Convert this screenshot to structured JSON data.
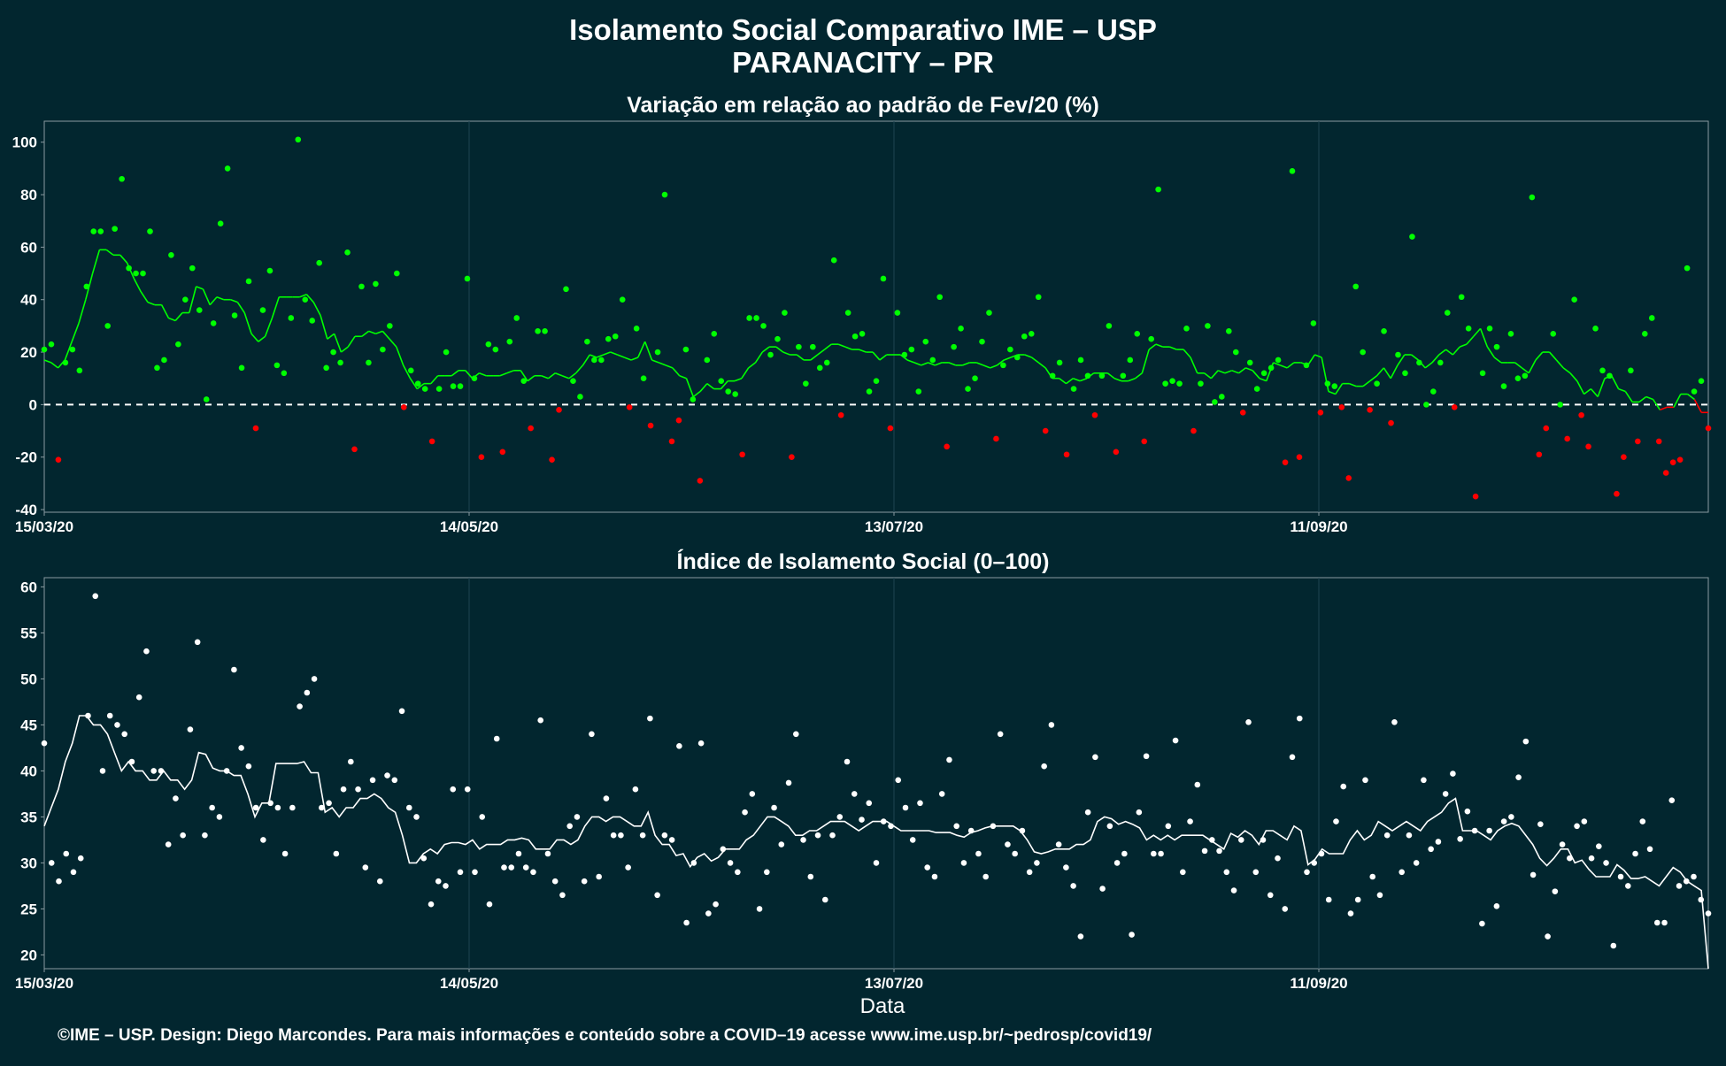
{
  "title": "Isolamento Social Comparativo IME – USP",
  "subtitle": "PARANACITY – PR",
  "xlabel": "Data",
  "footer": "©IME – USP. Design: Diego Marcondes. Para mais informações e conteúdo sobre a COVID–19 acesse www.ime.usp.br/~pedrosp/covid19/",
  "colors": {
    "background": "#02262f",
    "above": "#00ff00",
    "below": "#ff0000",
    "index": "#ffffff",
    "text": "#ffffff"
  },
  "chart_data": [
    {
      "type": "scatter",
      "title": "Variação em relação ao padrão de Fev/20 (%)",
      "xlabel": "Data",
      "ylabel": "",
      "x_range": [
        "2020-03-15",
        "2020-11-05"
      ],
      "ylim": [
        -41,
        108
      ],
      "yticks": [
        -40,
        -20,
        0,
        20,
        40,
        60,
        80,
        100
      ],
      "xticks": [
        "15/03/20",
        "14/05/20",
        "13/07/20",
        "11/09/20"
      ],
      "reference_line": 0,
      "grid": true,
      "series": [
        {
          "values": [
            21,
            23,
            -21,
            16,
            21,
            13,
            45,
            66,
            66,
            30,
            67,
            86,
            52,
            50,
            50,
            66,
            14,
            17,
            57,
            23,
            40,
            52,
            36,
            2,
            31,
            69,
            90,
            34,
            14,
            47,
            -9,
            36,
            51,
            15,
            12,
            33,
            101,
            40,
            32,
            54,
            14,
            20,
            16,
            58,
            -17,
            45,
            16,
            46,
            21,
            30,
            50,
            -1,
            13,
            8,
            6,
            -14,
            6,
            20,
            7,
            7,
            48,
            10,
            -20,
            23,
            21,
            -18,
            24,
            33,
            9,
            -9,
            28,
            28,
            -21,
            -2,
            44,
            9,
            3,
            24,
            17,
            17,
            25,
            26,
            40,
            -1,
            29,
            10,
            -8,
            20,
            80,
            -14,
            -6,
            21,
            2,
            -29,
            17,
            27,
            9,
            5,
            4,
            -19,
            33,
            33,
            30,
            19,
            25,
            35,
            -20,
            22,
            8,
            22,
            14,
            16,
            55,
            -4,
            35,
            26,
            27,
            5,
            9,
            48,
            -9,
            35,
            19,
            21,
            5,
            24,
            17,
            41,
            -16,
            22,
            29,
            6,
            10,
            24,
            35,
            -13,
            15,
            21,
            18,
            26,
            27,
            41,
            -10,
            11,
            16,
            -19,
            6,
            17,
            11,
            -4,
            11,
            30,
            -18,
            11,
            17,
            27,
            -14,
            25,
            82,
            8,
            9,
            8,
            29,
            -10,
            8,
            30,
            1,
            3,
            28,
            20,
            -3,
            16,
            6,
            12,
            14,
            17,
            -22,
            89,
            -20,
            15,
            31,
            -3,
            8,
            7,
            -1,
            -28,
            45,
            20,
            -2,
            8,
            28,
            -7,
            19,
            12,
            64,
            16,
            0,
            5,
            16,
            35,
            -1,
            41,
            29,
            -35,
            12,
            29,
            22,
            7,
            27,
            10,
            11,
            79,
            -19,
            -9,
            27,
            0,
            -13,
            40,
            -4,
            -16,
            29,
            13,
            11,
            -34,
            -20,
            13,
            -14,
            27,
            33,
            -14,
            -26,
            -22,
            -21,
            52,
            5,
            9,
            -9
          ]
        },
        {
          "values": [
            17,
            16,
            14,
            17,
            24,
            31,
            40,
            50,
            59,
            59,
            57,
            57,
            54,
            48,
            43,
            39,
            38,
            38,
            33,
            32,
            35,
            35,
            45,
            44,
            38,
            41,
            40,
            40,
            39,
            35,
            27,
            24,
            26,
            33,
            41,
            41,
            41,
            41,
            42,
            39,
            34,
            25,
            27,
            20,
            22,
            26,
            26,
            28,
            27,
            28,
            25,
            22,
            15,
            10,
            6,
            8,
            8,
            11,
            11,
            11,
            13,
            13,
            10,
            12,
            11,
            11,
            11,
            12,
            13,
            13,
            9,
            11,
            11,
            10,
            12,
            11,
            10,
            12,
            15,
            19,
            18,
            19,
            20,
            19,
            18,
            17,
            18,
            24,
            17,
            16,
            15,
            14,
            11,
            10,
            3,
            5,
            8,
            6,
            6,
            9,
            9,
            10,
            14,
            16,
            20,
            22,
            22,
            20,
            19,
            19,
            17,
            17,
            19,
            21,
            23,
            23,
            22,
            21,
            21,
            20,
            20,
            17,
            19,
            19,
            19,
            17,
            16,
            15,
            16,
            15,
            16,
            16,
            15,
            15,
            16,
            16,
            15,
            14,
            15,
            17,
            18,
            19,
            19,
            18,
            16,
            14,
            10,
            10,
            8,
            10,
            9,
            10,
            12,
            12,
            12,
            10,
            9,
            9,
            10,
            12,
            21,
            23,
            22,
            22,
            21,
            21,
            18,
            12,
            12,
            10,
            13,
            12,
            13,
            12,
            14,
            13,
            10,
            9,
            16,
            15,
            14,
            16,
            16,
            15,
            19,
            18,
            5,
            4,
            8,
            8,
            7,
            7,
            9,
            11,
            14,
            10,
            15,
            19,
            19,
            17,
            14,
            16,
            19,
            21,
            19,
            22,
            23,
            26,
            29,
            22,
            18,
            16,
            16,
            16,
            14,
            12,
            17,
            20,
            20,
            17,
            14,
            12,
            9,
            4,
            6,
            3,
            10,
            11,
            6,
            5,
            1,
            1,
            3,
            2,
            -2,
            -1,
            -1,
            4,
            4,
            2,
            -3,
            -3
          ]
        }
      ]
    },
    {
      "type": "scatter",
      "title": "Índice de Isolamento Social (0–100)",
      "xlabel": "Data",
      "ylabel": "",
      "x_range": [
        "2020-03-15",
        "2020-11-05"
      ],
      "ylim": [
        18.5,
        61
      ],
      "yticks": [
        20,
        25,
        30,
        35,
        40,
        45,
        50,
        55,
        60
      ],
      "xticks": [
        "15/03/20",
        "14/05/20",
        "13/07/20",
        "11/09/20"
      ],
      "grid": true,
      "series": [
        {
          "values": [
            43,
            30,
            28,
            31,
            29,
            30.5,
            46,
            59,
            40,
            46,
            45,
            44,
            41,
            48,
            53,
            40,
            40,
            32,
            37,
            33,
            44.5,
            54,
            33,
            36,
            35,
            40,
            51,
            42.5,
            40.5,
            36,
            32.5,
            36.5,
            36,
            31,
            36,
            47,
            48.5,
            50,
            36,
            36.5,
            31,
            38,
            41,
            38,
            29.5,
            39,
            28,
            39.5,
            39,
            46.5,
            36,
            35,
            30.5,
            25.5,
            28,
            27.5,
            38,
            29,
            38,
            29,
            35,
            25.5,
            43.5,
            29.5,
            29.5,
            31,
            29.5,
            29,
            45.5,
            31,
            28,
            26.5,
            34,
            35,
            28,
            44,
            28.5,
            37,
            33,
            33,
            29.5,
            38,
            33,
            45.7,
            26.5,
            33,
            32.5,
            42.7,
            23.5,
            30,
            43,
            24.5,
            25.5,
            31.5,
            30,
            29,
            35.5,
            37.5,
            25,
            29,
            36,
            32,
            38.7,
            44,
            32.5,
            28.5,
            33,
            26,
            33,
            35,
            41,
            37.5,
            34.7,
            36.5,
            30,
            34.5,
            34,
            39,
            36,
            32.5,
            36.5,
            29.5,
            28.5,
            37.5,
            41.2,
            34,
            30,
            33.5,
            31,
            28.5,
            34,
            44,
            32,
            31,
            33.5,
            29,
            30,
            40.5,
            45,
            32,
            29.5,
            27.5,
            22,
            35.5,
            41.5,
            27.2,
            34,
            30,
            31,
            22.2,
            35.5,
            41.6,
            31,
            31,
            34,
            43.3,
            29,
            34.5,
            38.5,
            31.3,
            32.5,
            31.3,
            29,
            27,
            32.5,
            45.3,
            29,
            32.5,
            26.5,
            30.5,
            25,
            41.5,
            45.7,
            29,
            30,
            31,
            26,
            34.5,
            38.3,
            24.5,
            26,
            39,
            28.5,
            26.5,
            33,
            45.3,
            29,
            33,
            30,
            39,
            31.5,
            32.3,
            37.5,
            39.7,
            32.6,
            35.6,
            33.5,
            23.4,
            33.5,
            25.3,
            34.5,
            35,
            39.3,
            43.2,
            28.7,
            34.2,
            22,
            26.9,
            32,
            30.5,
            34,
            34.5,
            30.5,
            31.8,
            30,
            21,
            28.5,
            27.5,
            31,
            34.5,
            31.5,
            23.5,
            23.5,
            36.8,
            27.5,
            28,
            28.5,
            26,
            24.5
          ]
        },
        {
          "values": [
            34,
            36,
            38,
            41,
            43,
            46,
            46,
            45,
            45,
            44,
            42,
            40,
            41,
            40,
            40,
            39,
            39,
            40,
            39,
            39,
            38,
            39,
            42,
            41.8,
            40.3,
            40,
            40,
            39.5,
            39.5,
            37.5,
            35,
            36.5,
            36.5,
            40.8,
            40.8,
            40.8,
            40.8,
            41,
            39.8,
            39.8,
            35.5,
            36,
            35,
            36,
            36,
            37,
            37,
            37.5,
            37,
            36,
            35.5,
            33,
            30,
            30,
            31,
            31.5,
            31,
            32,
            32.2,
            32.2,
            32,
            32.5,
            31.5,
            32,
            32,
            32,
            32.5,
            32.5,
            32.7,
            32.5,
            31.5,
            31.5,
            31.5,
            32.5,
            32.5,
            32,
            32.5,
            34,
            35,
            35,
            34.5,
            35,
            35,
            34.5,
            34,
            34,
            35.5,
            33,
            32,
            32,
            30.8,
            31,
            29.6,
            30.6,
            31,
            30.2,
            30.6,
            31.5,
            31.5,
            31.5,
            32.5,
            33,
            34,
            35,
            35,
            34.5,
            34,
            33,
            33,
            33.5,
            33.5,
            34,
            34.5,
            34.5,
            34.5,
            34,
            33.5,
            34,
            34.5,
            34.5,
            34.5,
            34,
            33.5,
            33.5,
            33.5,
            33.5,
            33.5,
            33.3,
            33.3,
            33.3,
            33,
            32.8,
            33.3,
            33.5,
            33.8,
            34,
            34,
            34,
            34,
            33.5,
            32.5,
            31.2,
            31,
            31.2,
            31.5,
            31.5,
            31.5,
            32,
            32,
            32.5,
            34.5,
            35,
            34.8,
            34.2,
            34.5,
            34.2,
            33.8,
            32.5,
            33,
            32.5,
            33,
            32.5,
            33,
            33,
            33,
            33,
            32.5,
            32,
            31.5,
            33.2,
            32.8,
            33.5,
            33,
            32,
            33.5,
            33.5,
            33,
            32.5,
            34,
            33.5,
            29.8,
            30.4,
            31.5,
            31,
            31,
            31,
            32.5,
            33.5,
            32.5,
            33,
            34.5,
            34,
            33.5,
            34,
            34.5,
            34,
            33.5,
            34.5,
            35,
            35.5,
            36.5,
            37,
            33.5,
            33.5,
            33.5,
            33,
            32.5,
            33.5,
            34,
            34.3,
            34,
            33,
            32,
            30.5,
            29.7,
            30.5,
            31.5,
            31.5,
            30,
            30.3,
            29.3,
            28.5,
            28.5,
            28.5,
            29.8,
            29.2,
            28.3,
            28.3,
            28.5,
            28,
            27.5,
            28.5,
            29.5,
            29,
            28,
            27.5,
            27,
            18.5
          ]
        }
      ]
    }
  ]
}
